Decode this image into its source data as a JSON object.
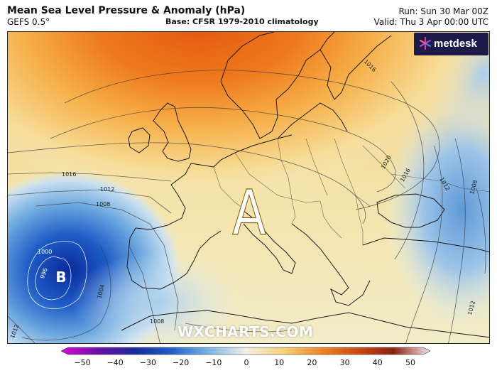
{
  "header": {
    "title": "Mean Sea Level Pressure & Anomaly (hPa)",
    "model": "GEFS 0.5°",
    "base": "Base: CFSR 1979-2010 climatology",
    "run": "Run: Sun 30 Mar 00Z",
    "valid": "Valid: Thu 3 Apr 00:00 UTC"
  },
  "logo": {
    "text": "metdesk"
  },
  "map": {
    "high_marker": "A",
    "low_marker": "B",
    "isobar_labels": [
      "1016",
      "1012",
      "1008",
      "1000",
      "996",
      "1004",
      "1008",
      "1012",
      "1016",
      "1020",
      "1016",
      "1012",
      "1008",
      "1012"
    ],
    "watermark": "WXCHARTS.COM",
    "colors": {
      "high_anomaly": "#e8620e",
      "low_anomaly": "#1f5fc8",
      "neutral": "#f3e7b6"
    }
  },
  "colorbar": {
    "min": -50,
    "max": 50,
    "tick_labels": [
      "−50",
      "−40",
      "−30",
      "−20",
      "−10",
      "0",
      "10",
      "20",
      "30",
      "40",
      "50"
    ]
  }
}
